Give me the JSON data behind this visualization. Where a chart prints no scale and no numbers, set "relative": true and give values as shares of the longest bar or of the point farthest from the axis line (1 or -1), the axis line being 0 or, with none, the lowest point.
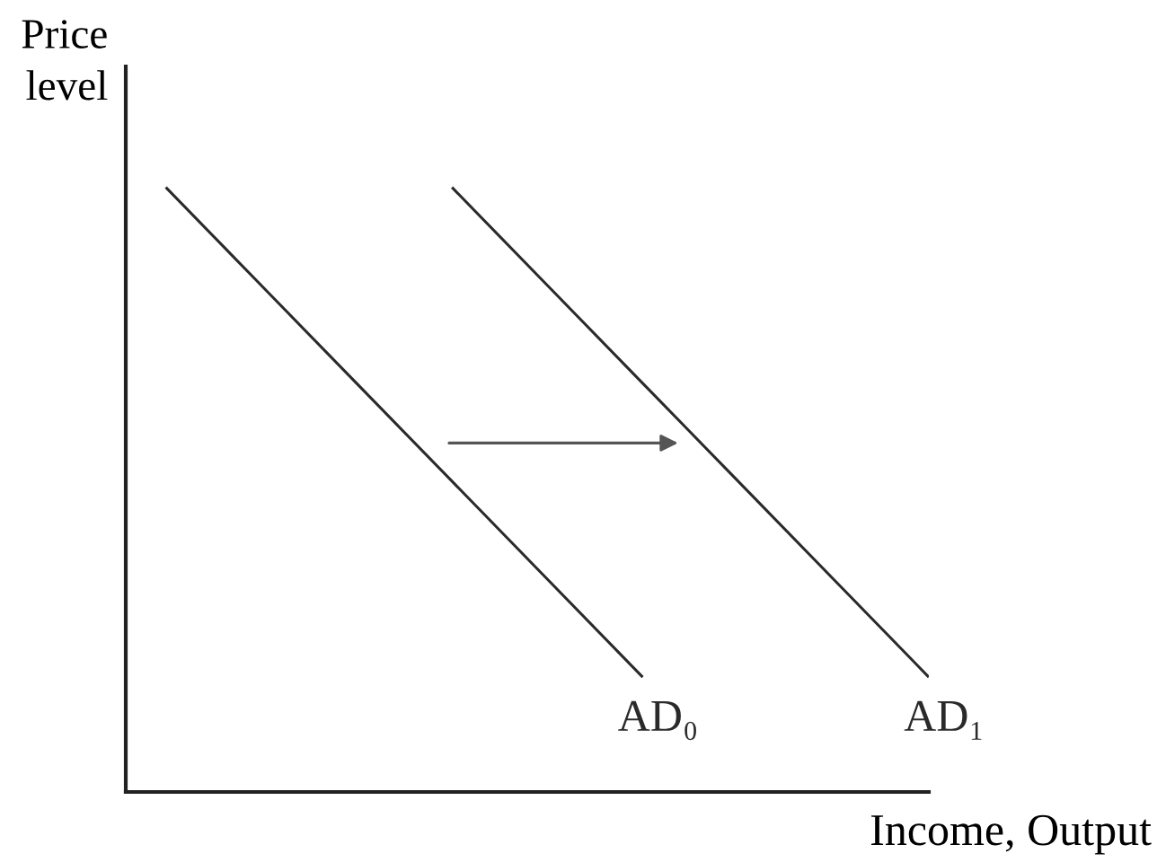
{
  "chart_data": {
    "type": "line",
    "relative": true,
    "ylabel": "Price\nlevel",
    "xlabel": "Income, Output",
    "categories": [
      null,
      null,
      null,
      null,
      null,
      null,
      null,
      null,
      null
    ],
    "series": [
      {
        "name": "AD₀",
        "color": "#2a2a2a",
        "values": [
          1,
          0.838,
          0.676,
          0.514,
          0.352,
          0.19,
          null,
          null,
          null
        ]
      },
      {
        "name": "AD₁",
        "color": "#2a2a2a",
        "values": [
          null,
          null,
          null,
          1,
          0.838,
          0.676,
          0.514,
          0.352,
          0.19
        ]
      }
    ]
  }
}
